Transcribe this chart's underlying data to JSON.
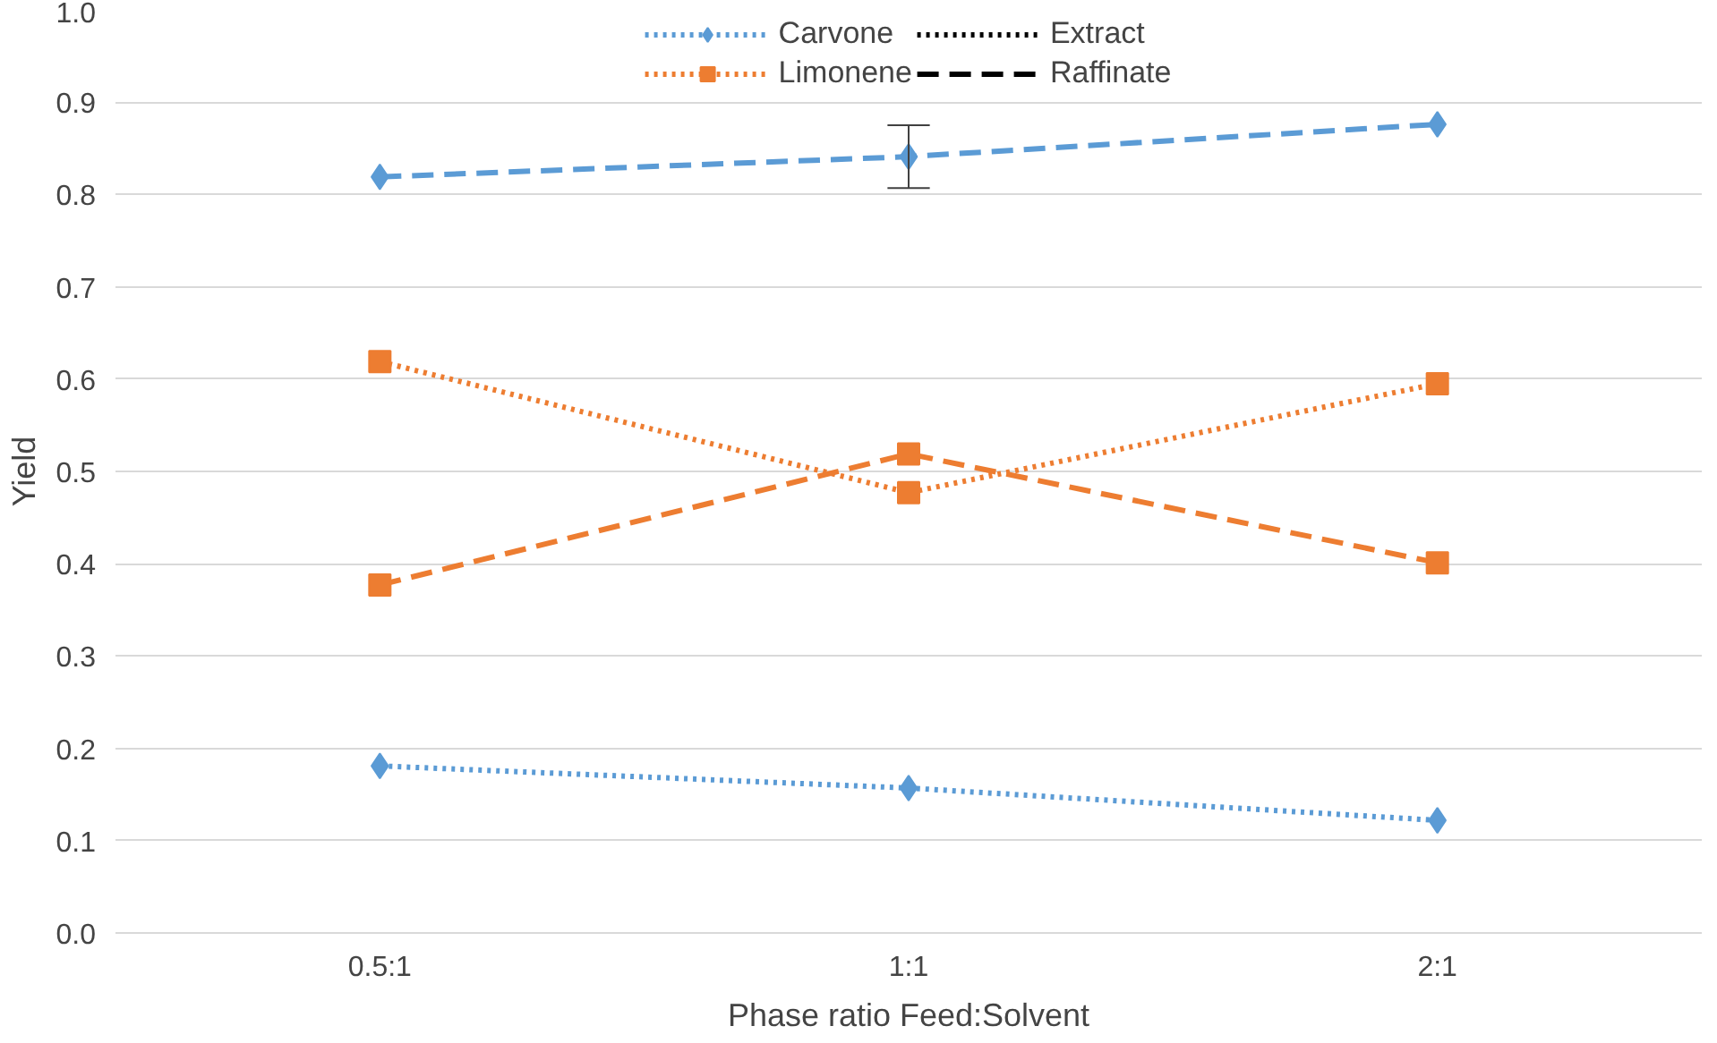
{
  "chart_data": {
    "type": "line",
    "xlabel": "Phase ratio Feed:Solvent",
    "ylabel": "Yield",
    "categories": [
      "0.5:1",
      "1:1",
      "2:1"
    ],
    "ylim": [
      0,
      1.0
    ],
    "yticks": [
      {
        "value": 0,
        "label": "0.0"
      },
      0.1,
      0.2,
      0.3,
      0.4,
      0.5,
      0.6,
      0.7,
      0.8,
      0.9,
      {
        "value": 1.0,
        "label": "1.0"
      }
    ],
    "grid": "y",
    "legend": "top",
    "series": [
      {
        "name": "Carvone",
        "color": "#5b9bd5",
        "marker": "diamond",
        "line_style": "dotted",
        "values": [
          0.181,
          0.157,
          0.122
        ]
      },
      {
        "name": "Limonene",
        "color": "#ed7d31",
        "marker": "square",
        "line_style": "dotted",
        "values": [
          0.619,
          0.477,
          0.595
        ]
      },
      {
        "name": "Extract",
        "color": "#000000",
        "marker": "none",
        "line_style": "dotted",
        "values": [
          null,
          null,
          null
        ]
      },
      {
        "name": "Raffinate",
        "color": "#000000",
        "marker": "none",
        "line_style": "dashed",
        "values": [
          null,
          null,
          null
        ]
      },
      {
        "color": "#5b9bd5",
        "marker": "diamond",
        "line_style": "dashed",
        "values": [
          0.819,
          0.841,
          0.876
        ],
        "errors": [
          null,
          0.034,
          null
        ]
      },
      {
        "color": "#ed7d31",
        "marker": "square",
        "line_style": "dashed",
        "values": [
          0.377,
          0.519,
          0.401
        ]
      }
    ]
  }
}
